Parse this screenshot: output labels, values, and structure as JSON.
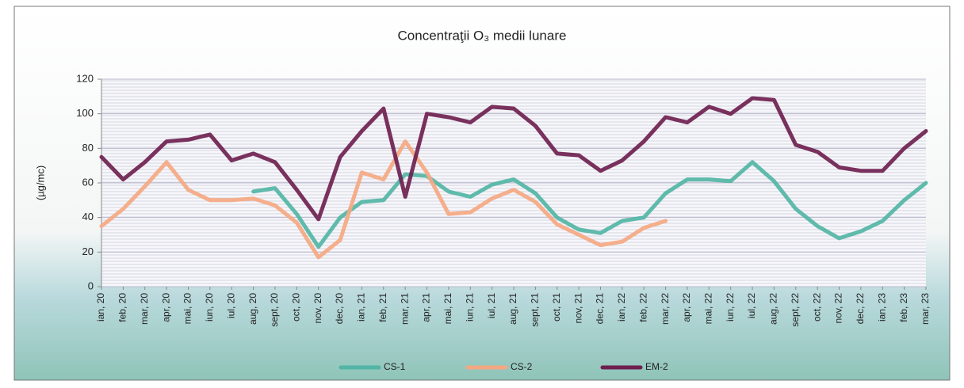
{
  "chart_data": {
    "type": "line",
    "title": "Concentraţii O₃ medii lunare",
    "y_label": "(µg/mc)",
    "categories": [
      "ian, 20",
      "feb, 20",
      "mar, 20",
      "apr, 20",
      "mai, 20",
      "iun, 20",
      "iul, 20",
      "aug, 20",
      "sept, 20",
      "oct, 20",
      "nov, 20",
      "dec, 20",
      "ian, 21",
      "feb, 21",
      "mar, 21",
      "apr, 21",
      "mai, 21",
      "iun, 21",
      "iul, 21",
      "aug, 21",
      "sept, 21",
      "oct, 21",
      "nov, 21",
      "dec, 21",
      "ian, 22",
      "feb, 22",
      "mar, 22",
      "apr, 22",
      "mai, 22",
      "iun, 22",
      "iul, 22",
      "aug, 22",
      "sept, 22",
      "oct, 22",
      "nov, 22",
      "dec, 22",
      "ian, 23",
      "feb, 23",
      "mar, 23"
    ],
    "series": [
      {
        "name": "CS-1",
        "color": "#52b5a5",
        "values": [
          null,
          null,
          null,
          null,
          null,
          null,
          null,
          55,
          57,
          42,
          23,
          40,
          49,
          50,
          65,
          64,
          55,
          52,
          59,
          62,
          54,
          40,
          33,
          31,
          38,
          40,
          54,
          62,
          62,
          61,
          72,
          61,
          45,
          35,
          28,
          32,
          38,
          50,
          60
        ]
      },
      {
        "name": "CS-2",
        "color": "#f4a882",
        "values": [
          35,
          45,
          58,
          72,
          56,
          50,
          50,
          51,
          47,
          37,
          17,
          27,
          66,
          62,
          84,
          66,
          42,
          43,
          51,
          56,
          49,
          36,
          30,
          24,
          26,
          34,
          38,
          null,
          null,
          null,
          null,
          null,
          null,
          null,
          null,
          null,
          null,
          null,
          null
        ]
      },
      {
        "name": "EM-2",
        "color": "#6e1f4f",
        "values": [
          75,
          62,
          72,
          84,
          85,
          88,
          73,
          77,
          72,
          56,
          39,
          75,
          90,
          103,
          52,
          100,
          98,
          95,
          104,
          103,
          93,
          77,
          76,
          67,
          73,
          84,
          98,
          95,
          104,
          100,
          109,
          108,
          82,
          78,
          69,
          67,
          67,
          80,
          90
        ]
      }
    ],
    "ylim": [
      0,
      120
    ],
    "yticks": [
      0,
      20,
      40,
      60,
      80,
      100,
      120
    ],
    "grid": true,
    "legend": "bottom"
  }
}
